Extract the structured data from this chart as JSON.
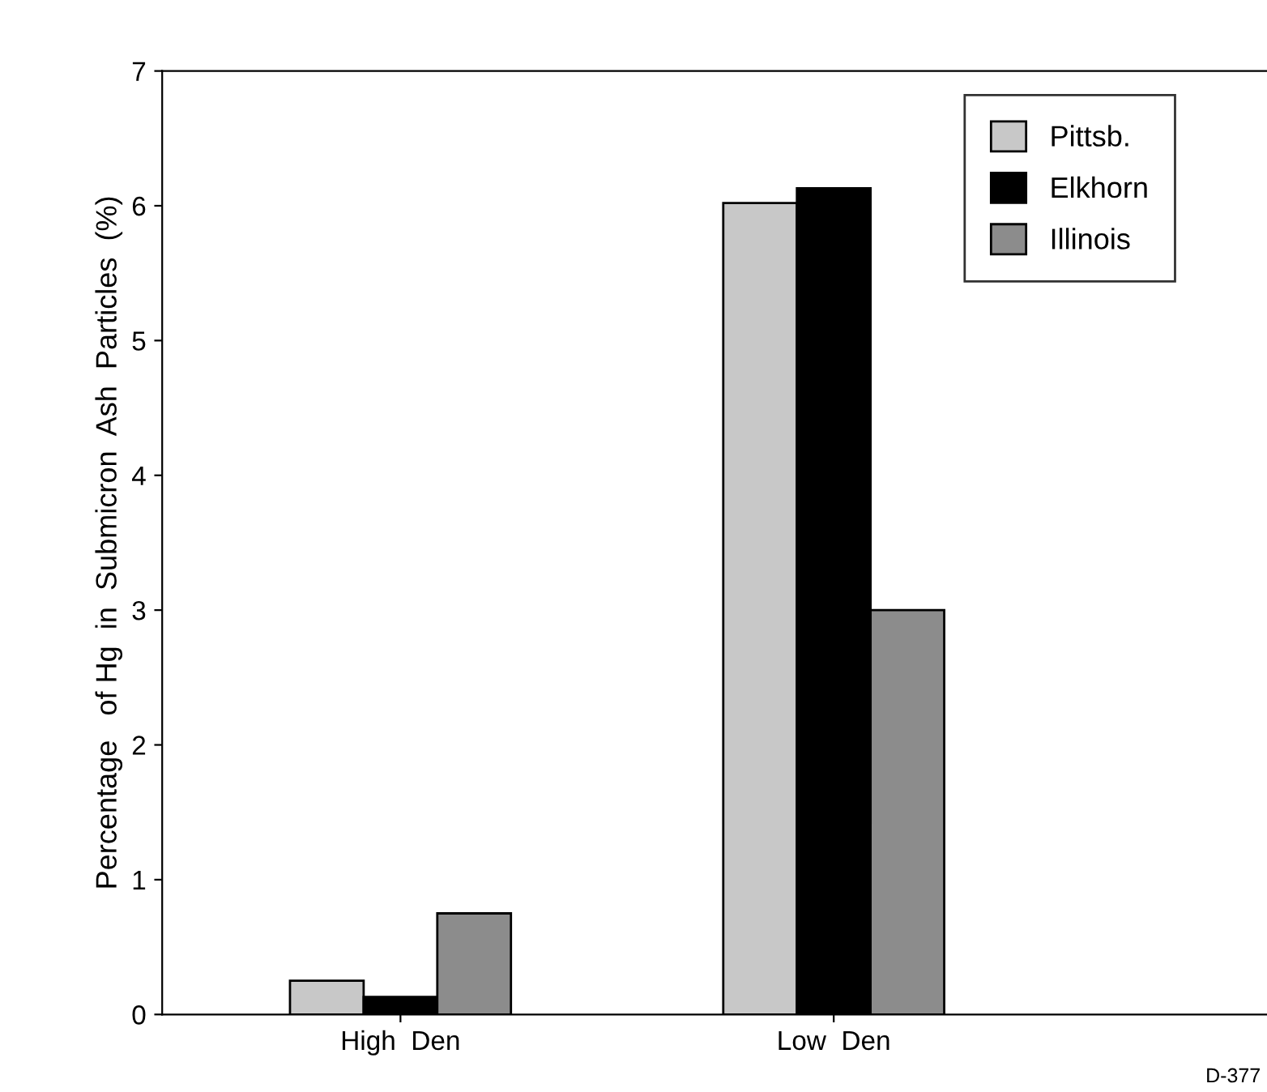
{
  "chart_data": {
    "type": "bar",
    "ylabel": "Percentage   of Hg  in  Submicron  Ash  Particles  (%)",
    "categories": [
      "High  Den",
      "Low  Den"
    ],
    "series": [
      {
        "name": "Pittsb.",
        "color": "#c8c8c8",
        "values": [
          0.25,
          6.02
        ]
      },
      {
        "name": "Elkhorn",
        "color": "#000000",
        "values": [
          0.13,
          6.13
        ]
      },
      {
        "name": "Illinois",
        "color": "#8c8c8c",
        "values": [
          0.75,
          3.0
        ]
      }
    ],
    "ylim": [
      0,
      7
    ],
    "yticks": [
      0,
      1,
      2,
      3,
      4,
      5,
      6,
      7
    ],
    "grid": false,
    "legend": "top right",
    "annotations": [
      "D-377"
    ]
  }
}
